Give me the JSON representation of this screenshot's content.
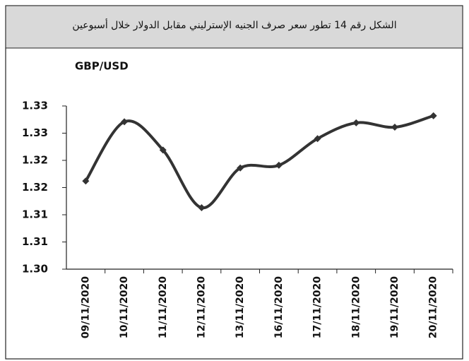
{
  "chart_data": {
    "type": "line",
    "title": "الشكل رقم 14 تطور سعر صرف الجنيه الإسترليني مقابل الدولار خلال أسبوعين",
    "y_label": "GBP/USD",
    "categories": [
      "09/11/2020",
      "10/11/2020",
      "11/11/2020",
      "12/11/2020",
      "13/11/2020",
      "16/11/2020",
      "17/11/2020",
      "18/11/2020",
      "19/11/2020",
      "20/11/2020"
    ],
    "series": [
      {
        "name": "GBP/USD",
        "color": "#333333",
        "values": [
          1.3162,
          1.3271,
          1.3219,
          1.3113,
          1.3186,
          1.3191,
          1.324,
          1.3269,
          1.3261,
          1.3282
        ]
      }
    ],
    "ylim": [
      1.3,
      1.33
    ],
    "yticks": [
      {
        "value": 1.3,
        "label": "1.30"
      },
      {
        "value": 1.305,
        "label": "1.31"
      },
      {
        "value": 1.31,
        "label": "1.31"
      },
      {
        "value": 1.315,
        "label": "1.32"
      },
      {
        "value": 1.32,
        "label": "1.32"
      },
      {
        "value": 1.325,
        "label": "1.33"
      },
      {
        "value": 1.33,
        "label": "1.33"
      }
    ],
    "grid": false
  }
}
